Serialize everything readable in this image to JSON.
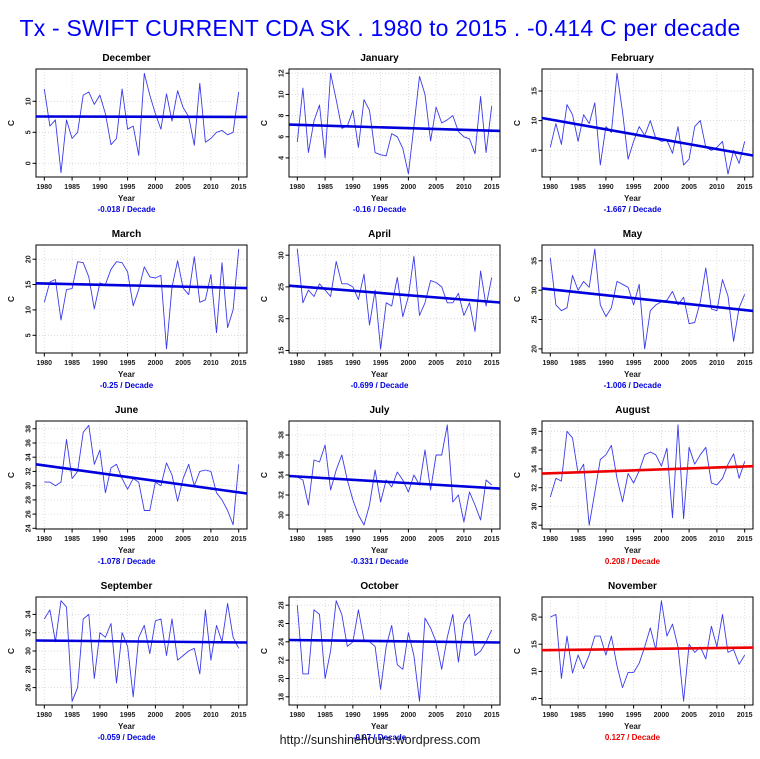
{
  "title": {
    "text": "Tx - SWIFT CURRENT CDA SK . 1980 to 2015 . -0.414 C per decade",
    "color": "#0000ff"
  },
  "footer": {
    "url": "http://sunshinehours.wordpress.com"
  },
  "axis": {
    "xlim": [
      1978.5,
      2016.5
    ],
    "x_start": 1980,
    "x_end": 2015,
    "xticks": [
      1980,
      1985,
      1990,
      1995,
      2000,
      2005,
      2010,
      2015
    ],
    "xlabel": "Year"
  },
  "colors": {
    "series": "#3b3beb",
    "trend_down": "#0000dd",
    "trend_up": "#ee0000",
    "grid": "#d4d4d4"
  },
  "chart_data": [
    {
      "type": "line",
      "title": "December",
      "xlabel": "Year",
      "ylabel": "C",
      "yticks": [
        0,
        5,
        10
      ],
      "ylim": [
        -2.2,
        15.2
      ],
      "values": [
        12,
        6,
        7,
        -1.5,
        7,
        4,
        5,
        11,
        11.5,
        9.5,
        11,
        8,
        3,
        4,
        12,
        5.5,
        6,
        1.3,
        14.5,
        11,
        8,
        5.5,
        11.2,
        6.8,
        11.7,
        9,
        7.5,
        2.9,
        12.9,
        3.4,
        4,
        5,
        5.3,
        4.6,
        5,
        11.5
      ],
      "trend": {
        "label": "-0.018",
        "unit": "/ Decade",
        "color": "#0000dd",
        "line": [
          7.55,
          7.48
        ]
      }
    },
    {
      "type": "line",
      "title": "January",
      "xlabel": "Year",
      "ylabel": "C",
      "yticks": [
        4,
        6,
        8,
        10,
        12
      ],
      "ylim": [
        2.2,
        12.4
      ],
      "values": [
        5.5,
        10.6,
        4.5,
        7.5,
        9,
        4,
        12,
        9.5,
        6.8,
        7,
        8.5,
        5,
        9.5,
        8.5,
        4.5,
        4.3,
        4.2,
        6.3,
        6,
        4.9,
        2.5,
        7,
        11.7,
        10,
        5.6,
        8.8,
        7.3,
        7.6,
        8,
        6.5,
        6,
        5.8,
        4.4,
        9.8,
        4.5,
        8.9
      ],
      "trend": {
        "label": "-0.16",
        "unit": "/ Decade",
        "color": "#0000dd",
        "line": [
          7.15,
          6.55
        ]
      }
    },
    {
      "type": "line",
      "title": "February",
      "xlabel": "Year",
      "ylabel": "C",
      "yticks": [
        5,
        10,
        15
      ],
      "ylim": [
        0.5,
        18.7
      ],
      "values": [
        5.5,
        9.5,
        6,
        12.7,
        11,
        6.5,
        11,
        9.5,
        13,
        2.5,
        9,
        8,
        18,
        11.5,
        3.5,
        6.5,
        9,
        7.5,
        10,
        7,
        6.5,
        6.7,
        4.5,
        9,
        2.5,
        3.5,
        9,
        10,
        5.5,
        5,
        5.5,
        6.5,
        1,
        5,
        2.8,
        6.5
      ],
      "trend": {
        "label": "-1.667",
        "unit": "/ Decade",
        "color": "#0000dd",
        "line": [
          10.45,
          4.12
        ]
      }
    },
    {
      "type": "line",
      "title": "March",
      "xlabel": "Year",
      "ylabel": "C",
      "yticks": [
        5,
        10,
        15,
        20
      ],
      "ylim": [
        1.5,
        22.8
      ],
      "values": [
        11.5,
        15.5,
        16,
        8,
        14,
        14.2,
        19.5,
        19.3,
        16.5,
        10.2,
        15.3,
        15,
        18,
        19.5,
        19.3,
        17.5,
        10.8,
        14,
        18.5,
        16.5,
        16.3,
        16.8,
        2.3,
        14.5,
        19.7,
        14.3,
        13,
        20.5,
        11.5,
        12,
        17,
        5.5,
        19.3,
        6.5,
        10,
        22
      ],
      "trend": {
        "label": "-0.25",
        "unit": "/ Decade",
        "color": "#0000dd",
        "line": [
          15.25,
          14.3
        ]
      }
    },
    {
      "type": "line",
      "title": "April",
      "xlabel": "Year",
      "ylabel": "C",
      "yticks": [
        15,
        20,
        25,
        30
      ],
      "ylim": [
        14.6,
        31.6
      ],
      "values": [
        31,
        22.5,
        24.5,
        23.5,
        25.5,
        24.5,
        23.5,
        29,
        25.5,
        25.5,
        25,
        23,
        27,
        19,
        24.5,
        15.2,
        22.5,
        22,
        26.5,
        20.3,
        23.5,
        29.8,
        20.5,
        22.5,
        26,
        25.7,
        25,
        22.5,
        22.5,
        24,
        20.5,
        22.5,
        18,
        27.5,
        22,
        26.5
      ],
      "trend": {
        "label": "-0.699",
        "unit": "/ Decade",
        "color": "#0000dd",
        "line": [
          25.2,
          22.55
        ]
      }
    },
    {
      "type": "line",
      "title": "May",
      "xlabel": "Year",
      "ylabel": "C",
      "yticks": [
        20,
        25,
        30,
        35
      ],
      "ylim": [
        19.3,
        37.7
      ],
      "values": [
        35.5,
        27.5,
        26.5,
        27,
        32.5,
        30,
        31.5,
        30.5,
        37,
        27.5,
        25.5,
        27,
        31.5,
        31,
        30.5,
        27.5,
        31,
        20,
        26.5,
        27.5,
        28,
        28.3,
        29.8,
        27.5,
        28.8,
        24.3,
        24.5,
        28,
        33.8,
        26.8,
        26.5,
        31.8,
        29,
        21.3,
        27,
        29.3
      ],
      "trend": {
        "label": "-1.006",
        "unit": "/ Decade",
        "color": "#0000dd",
        "line": [
          30.3,
          26.48
        ]
      }
    },
    {
      "type": "line",
      "title": "June",
      "xlabel": "Year",
      "ylabel": "C",
      "yticks": [
        24,
        26,
        28,
        30,
        32,
        34,
        36,
        38
      ],
      "ylim": [
        23.9,
        39.1
      ],
      "values": [
        30.5,
        30.5,
        30,
        30.5,
        36.5,
        31,
        32,
        37.5,
        38.5,
        33,
        35,
        29,
        32.5,
        33,
        31,
        29.5,
        31,
        30.5,
        26.5,
        26.5,
        30.5,
        30,
        33.2,
        31.5,
        27.8,
        31,
        33,
        30,
        32,
        32.2,
        32,
        29,
        28,
        26.5,
        24.5,
        33
      ],
      "trend": {
        "label": "-1.078",
        "unit": "/ Decade",
        "color": "#0000dd",
        "line": [
          33.0,
          28.9
        ]
      }
    },
    {
      "type": "line",
      "title": "July",
      "xlabel": "Year",
      "ylabel": "C",
      "yticks": [
        30,
        32,
        34,
        36,
        38
      ],
      "ylim": [
        28.6,
        39.4
      ],
      "values": [
        33.8,
        33.5,
        31,
        35.5,
        35.3,
        37,
        32.5,
        34.5,
        36,
        33.5,
        31.5,
        30,
        29,
        31,
        34.5,
        31.3,
        33.5,
        32.8,
        34.3,
        33.5,
        32.3,
        34,
        33,
        36.5,
        32.5,
        36,
        36,
        39,
        31.3,
        32,
        29.3,
        32.3,
        31,
        29.5,
        33.5,
        33
      ],
      "trend": {
        "label": "-0.331",
        "unit": "/ Decade",
        "color": "#0000dd",
        "line": [
          33.9,
          32.64
        ]
      }
    },
    {
      "type": "line",
      "title": "August",
      "xlabel": "Year",
      "ylabel": "C",
      "yticks": [
        28,
        30,
        32,
        34,
        36,
        38
      ],
      "ylim": [
        27.6,
        39.1
      ],
      "values": [
        31,
        33,
        32.7,
        38,
        37.3,
        33.5,
        34.5,
        28,
        31.5,
        35,
        35.5,
        36.5,
        33,
        30.5,
        33.5,
        32.5,
        33.8,
        35.5,
        35.8,
        35.5,
        34.3,
        36.2,
        28.8,
        38.7,
        28.7,
        36.3,
        34.5,
        35.5,
        36.3,
        32.5,
        32.3,
        33,
        34.5,
        35.6,
        33,
        34.8
      ],
      "trend": {
        "label": "0.208",
        "unit": "/ Decade",
        "color": "#ee0000",
        "line": [
          33.5,
          34.29
        ]
      }
    },
    {
      "type": "line",
      "title": "September",
      "xlabel": "Year",
      "ylabel": "C",
      "yticks": [
        26,
        28,
        30,
        32,
        34
      ],
      "ylim": [
        24.1,
        35.9
      ],
      "values": [
        33.5,
        34.5,
        31,
        35.5,
        34.8,
        24.5,
        26,
        33.5,
        34,
        27,
        32,
        31.5,
        33,
        26.5,
        32,
        30.5,
        25,
        31.5,
        32.8,
        29.7,
        33.3,
        33.5,
        29.5,
        33.5,
        29,
        29.5,
        30,
        30.3,
        27.5,
        34.5,
        29,
        32.8,
        31,
        35.2,
        31.5,
        30.3
      ],
      "trend": {
        "label": "-0.059",
        "unit": "/ Decade",
        "color": "#0000dd",
        "line": [
          31.15,
          30.93
        ]
      }
    },
    {
      "type": "line",
      "title": "October",
      "xlabel": "Year",
      "ylabel": "C",
      "yticks": [
        18,
        20,
        22,
        24,
        26,
        28
      ],
      "ylim": [
        17.1,
        28.9
      ],
      "values": [
        28,
        20.5,
        20.5,
        27.5,
        27,
        20,
        23,
        28.5,
        27,
        23.5,
        24,
        27.5,
        24.2,
        24,
        23.5,
        18.8,
        23.5,
        25.8,
        21.5,
        21,
        25,
        22.5,
        17.5,
        26.6,
        25.5,
        24,
        21,
        24.5,
        27,
        21.8,
        26,
        27,
        22.5,
        23,
        24,
        25.3
      ],
      "trend": {
        "label": "-0.07",
        "unit": "/ Decade",
        "color": "#0000dd",
        "line": [
          24.2,
          23.93
        ]
      }
    },
    {
      "type": "line",
      "title": "November",
      "xlabel": "Year",
      "ylabel": "C",
      "yticks": [
        5,
        10,
        15,
        20
      ],
      "ylim": [
        3.8,
        23.7
      ],
      "values": [
        20,
        20.5,
        8.7,
        16.5,
        9.7,
        13,
        10.5,
        13,
        16.5,
        16.5,
        13,
        16.5,
        11,
        7,
        9.8,
        9.8,
        11.5,
        14.5,
        18,
        14,
        23,
        16.5,
        18.7,
        14.5,
        4.5,
        15,
        13.5,
        14.5,
        12.3,
        18.3,
        14.5,
        20.5,
        13.5,
        14,
        11.3,
        13
      ],
      "trend": {
        "label": "0.127",
        "unit": "/ Decade",
        "color": "#ee0000",
        "line": [
          13.9,
          14.38
        ]
      }
    }
  ]
}
